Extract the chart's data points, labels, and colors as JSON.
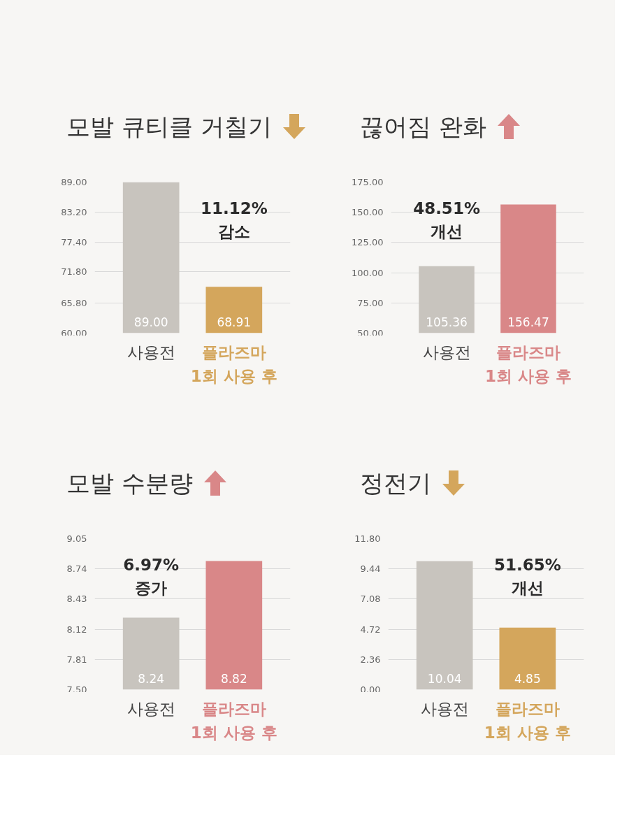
{
  "chart_data": [
    {
      "type": "bar",
      "title": "모발 큐티클 거칠기",
      "categories": [
        "사용전",
        "플라즈마\n1회 사용 후"
      ],
      "values": [
        89.0,
        68.91
      ],
      "value_labels": [
        "89.00",
        "68.91"
      ],
      "colors": [
        "#c8c4be",
        "#d4a65c"
      ],
      "ylim": [
        60,
        89
      ],
      "yticks": [
        {
          "value": 60,
          "label": "60.00"
        },
        {
          "value": 65.8,
          "label": "65.80"
        },
        {
          "value": 71.8,
          "label": "71.80"
        },
        {
          "value": 77.4,
          "label": "77.40"
        },
        {
          "value": 83.2,
          "label": "83.20"
        },
        {
          "value": 89,
          "label": "89.00"
        }
      ],
      "grid": "y",
      "annotations": [
        "11.12%\n감소"
      ]
    },
    {
      "type": "bar",
      "title": "끊어짐 완화",
      "categories": [
        "사용전",
        "플라즈마\n1회 사용 후"
      ],
      "values": [
        105.36,
        156.47
      ],
      "value_labels": [
        "105.36",
        "156.47"
      ],
      "colors": [
        "#c8c4be",
        "#d98788"
      ],
      "ylim": [
        50,
        175
      ],
      "yticks": [
        {
          "value": 50,
          "label": "50.00"
        },
        {
          "value": 75,
          "label": "75.00"
        },
        {
          "value": 100,
          "label": "100.00"
        },
        {
          "value": 125,
          "label": "125.00"
        },
        {
          "value": 150,
          "label": "150.00"
        },
        {
          "value": 175,
          "label": "175.00"
        }
      ],
      "grid": "y",
      "annotations": [
        "48.51%\n개선"
      ]
    },
    {
      "type": "bar",
      "title": "모발 수분량",
      "categories": [
        "사용전",
        "플라즈마\n1회 사용 후"
      ],
      "values": [
        8.24,
        8.82
      ],
      "value_labels": [
        "8.24",
        "8.82"
      ],
      "colors": [
        "#c8c4be",
        "#d98788"
      ],
      "ylim": [
        7.5,
        9.05
      ],
      "yticks": [
        {
          "value": 7.5,
          "label": "7.50"
        },
        7.81,
        8.12,
        8.43,
        8.74,
        9.05
      ],
      "grid": "y",
      "annotations": [
        "6.97%\n증가"
      ]
    },
    {
      "type": "bar",
      "title": "정전기",
      "categories": [
        "사용전",
        "플라즈마\n1회 사용 후"
      ],
      "values": [
        10.04,
        4.85
      ],
      "value_labels": [
        "10.04",
        "4.85"
      ],
      "colors": [
        "#c8c4be",
        "#d4a65c"
      ],
      "ylim": [
        0,
        11.8
      ],
      "yticks": [
        {
          "value": 0,
          "label": "0.00"
        },
        2.36,
        4.72,
        7.08,
        9.44,
        {
          "value": 11.8,
          "label": "11.80"
        }
      ],
      "grid": "y",
      "annotations": [
        "51.65%\n개선"
      ]
    }
  ]
}
